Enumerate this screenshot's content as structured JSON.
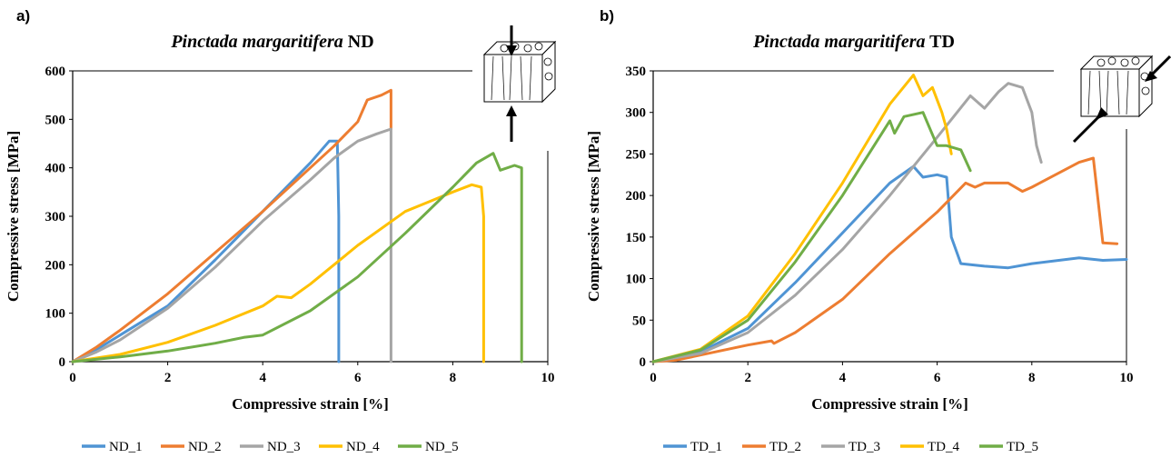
{
  "chart_data": [
    {
      "panel_label": "a)",
      "type": "line",
      "title_italic": "Pinctada margaritifera",
      "title_suffix": "ND",
      "xlabel": "Compressive strain [%]",
      "ylabel": "Compressive stress [MPa]",
      "xlim": [
        0,
        10
      ],
      "ylim": [
        0,
        600
      ],
      "xticks": [
        0,
        2,
        4,
        6,
        8,
        10
      ],
      "yticks": [
        0,
        100,
        200,
        300,
        400,
        500,
        600
      ],
      "grid": false,
      "legend_position": "bottom",
      "series": [
        {
          "name": "ND_1",
          "color": "#4f94d4",
          "x": [
            0,
            0.5,
            1,
            1.5,
            2,
            3,
            4,
            5,
            5.4,
            5.55,
            5.57,
            5.6,
            5.6
          ],
          "y": [
            0,
            25,
            55,
            85,
            115,
            210,
            310,
            410,
            455,
            455,
            455,
            300,
            0
          ]
        },
        {
          "name": "ND_2",
          "color": "#ed7d31",
          "x": [
            0,
            0.5,
            1,
            2,
            3,
            4,
            5,
            5.5,
            6,
            6.2,
            6.5,
            6.7,
            6.7
          ],
          "y": [
            0,
            30,
            65,
            140,
            225,
            310,
            400,
            445,
            495,
            540,
            550,
            560,
            480
          ]
        },
        {
          "name": "ND_3",
          "color": "#a5a5a5",
          "x": [
            0,
            0.5,
            1,
            2,
            3,
            4,
            5,
            5.5,
            6,
            6.4,
            6.7,
            6.7
          ],
          "y": [
            0,
            20,
            45,
            110,
            195,
            290,
            375,
            420,
            455,
            470,
            480,
            0
          ]
        },
        {
          "name": "ND_4",
          "color": "#ffc000",
          "x": [
            0,
            1,
            2,
            3,
            4,
            4.3,
            4.6,
            5,
            6,
            7,
            7.5,
            8,
            8.4,
            8.6,
            8.65,
            8.65
          ],
          "y": [
            0,
            15,
            40,
            75,
            115,
            135,
            132,
            160,
            240,
            310,
            330,
            350,
            365,
            360,
            300,
            0
          ]
        },
        {
          "name": "ND_5",
          "color": "#70ad47",
          "x": [
            0,
            1,
            2,
            3,
            3.6,
            4,
            5,
            6,
            7,
            8,
            8.5,
            8.85,
            9.0,
            9.3,
            9.45,
            9.45
          ],
          "y": [
            0,
            10,
            22,
            38,
            50,
            55,
            105,
            175,
            265,
            360,
            410,
            430,
            395,
            405,
            400,
            0
          ]
        }
      ],
      "inset_icon": "nacre-block-compression-vertical-icon"
    },
    {
      "panel_label": "b)",
      "type": "line",
      "title_italic": "Pinctada margaritifera",
      "title_suffix": "TD",
      "xlabel": "Compressive strain [%]",
      "ylabel": "Compressive stress [MPa]",
      "xlim": [
        0,
        10
      ],
      "ylim": [
        0,
        350
      ],
      "xticks": [
        0,
        2,
        4,
        6,
        8,
        10
      ],
      "yticks": [
        0,
        50,
        100,
        150,
        200,
        250,
        300,
        350
      ],
      "grid": false,
      "legend_position": "bottom",
      "series": [
        {
          "name": "TD_1",
          "color": "#4f94d4",
          "x": [
            0,
            1,
            2,
            3,
            4,
            5,
            5.5,
            5.7,
            6,
            6.2,
            6.3,
            6.5,
            7,
            7.5,
            8,
            9,
            9.5,
            10
          ],
          "y": [
            0,
            12,
            40,
            95,
            155,
            215,
            235,
            222,
            225,
            222,
            150,
            118,
            115,
            113,
            118,
            125,
            122,
            123
          ]
        },
        {
          "name": "TD_2",
          "color": "#ed7d31",
          "x": [
            0,
            0.5,
            1,
            2,
            2.5,
            2.55,
            3,
            4,
            5,
            6,
            6.6,
            6.8,
            7,
            7.5,
            7.8,
            8,
            9,
            9.3,
            9.5,
            9.8
          ],
          "y": [
            0,
            2,
            8,
            20,
            25,
            22,
            35,
            75,
            130,
            180,
            215,
            210,
            215,
            215,
            205,
            210,
            240,
            245,
            143,
            142
          ]
        },
        {
          "name": "TD_3",
          "color": "#a5a5a5",
          "x": [
            0,
            1,
            2,
            3,
            4,
            5,
            6,
            6.7,
            7,
            7.3,
            7.5,
            7.8,
            8,
            8.1,
            8.2
          ],
          "y": [
            0,
            10,
            35,
            80,
            135,
            200,
            270,
            320,
            305,
            325,
            335,
            330,
            300,
            260,
            240
          ]
        },
        {
          "name": "TD_4",
          "color": "#ffc000",
          "x": [
            0,
            1,
            2,
            3,
            4,
            5,
            5.5,
            5.7,
            5.9,
            6.1,
            6.2,
            6.3
          ],
          "y": [
            0,
            15,
            55,
            130,
            215,
            310,
            345,
            320,
            330,
            300,
            280,
            250
          ]
        },
        {
          "name": "TD_5",
          "color": "#70ad47",
          "x": [
            0,
            1,
            2,
            3,
            4,
            5,
            5.1,
            5.3,
            5.7,
            6,
            6.2,
            6.5,
            6.7
          ],
          "y": [
            0,
            14,
            50,
            120,
            200,
            290,
            275,
            295,
            300,
            260,
            260,
            255,
            230
          ]
        }
      ],
      "inset_icon": "nacre-block-compression-diagonal-icon"
    }
  ]
}
